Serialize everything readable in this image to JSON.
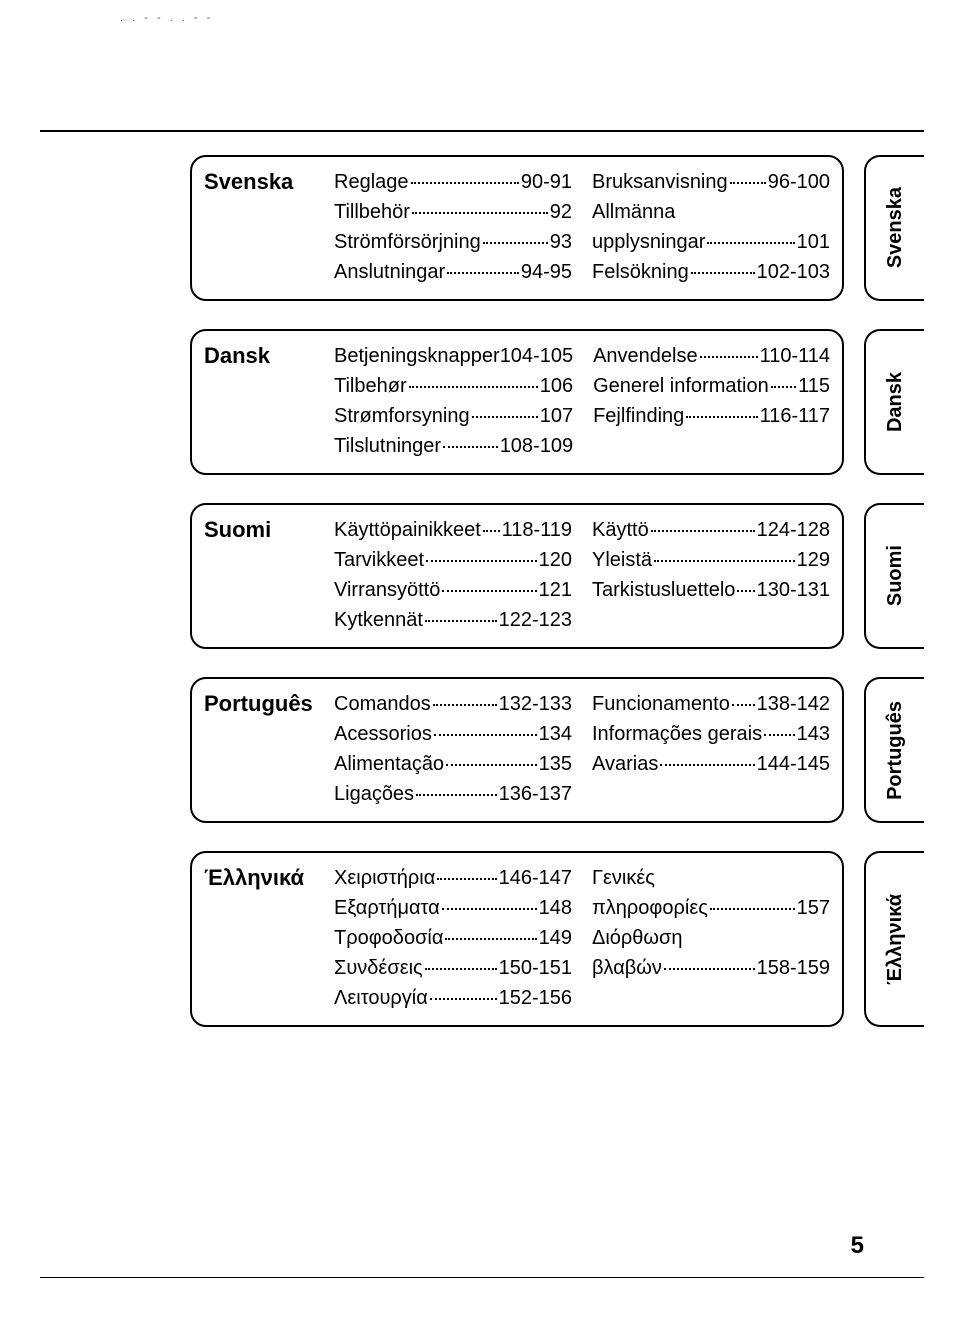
{
  "page_number": "5",
  "artifact_top": ". .  - -   .   . - -",
  "sections": [
    {
      "language": "Svenska",
      "tab": "Svenska",
      "col1": [
        {
          "label": "Reglage",
          "pages": "90-91"
        },
        {
          "label": "Tillbehör",
          "pages": "92"
        },
        {
          "label": "Strömförsörjning",
          "pages": "93"
        },
        {
          "label": "Anslutningar",
          "pages": "94-95"
        }
      ],
      "col2": [
        {
          "label": "Bruksanvisning",
          "pages": "96-100"
        },
        {
          "label": "Allmänna",
          "cont_label": "upplysningar",
          "pages": "101"
        },
        {
          "label": "Felsökning",
          "pages": "102-103"
        }
      ]
    },
    {
      "language": "Dansk",
      "tab": "Dansk",
      "col1": [
        {
          "label": "Betjeningsknapper",
          "pages": "104-105",
          "nodots": true
        },
        {
          "label": "Tilbehør",
          "pages": "106"
        },
        {
          "label": "Strømforsyning",
          "pages": "107"
        },
        {
          "label": "Tilslutninger",
          "pages": "108-109"
        }
      ],
      "col2": [
        {
          "label": "Anvendelse",
          "pages": "110-114"
        },
        {
          "label": "Generel information",
          "pages": "115"
        },
        {
          "label": "Fejlfinding",
          "pages": "116-117"
        }
      ]
    },
    {
      "language": "Suomi",
      "tab": "Suomi",
      "col1": [
        {
          "label": "Käyttöpainikkeet",
          "pages": "118-119"
        },
        {
          "label": "Tarvikkeet",
          "pages": "120"
        },
        {
          "label": "Virransyöttö",
          "pages": "121"
        },
        {
          "label": "Kytkennät",
          "pages": "122-123"
        }
      ],
      "col2": [
        {
          "label": "Käyttö",
          "pages": "124-128"
        },
        {
          "label": "Yleistä",
          "pages": "129"
        },
        {
          "label": "Tarkistusluettelo",
          "pages": "130-131"
        }
      ]
    },
    {
      "language": "Português",
      "tab": "Português",
      "col1": [
        {
          "label": "Comandos",
          "pages": "132-133"
        },
        {
          "label": "Acessorios",
          "pages": "134"
        },
        {
          "label": "Alimentação",
          "pages": "135"
        },
        {
          "label": "Ligações",
          "pages": "136-137"
        }
      ],
      "col2": [
        {
          "label": "Funcionamento",
          "pages": "138-142"
        },
        {
          "label": "Informações gerais",
          "pages": "143"
        },
        {
          "label": "Avarias",
          "pages": "144-145"
        }
      ]
    },
    {
      "language": "Έλληνικά",
      "tab": "Έλληνικά",
      "col1": [
        {
          "label": "Χειριστήρια",
          "pages": "146-147"
        },
        {
          "label": "Εξαρτήματα",
          "pages": "148"
        },
        {
          "label": "Τροφοδοσία",
          "pages": "149"
        },
        {
          "label": "Συνδέσεις",
          "pages": "150-151"
        },
        {
          "label": "Λειτουργία",
          "pages": "152-156"
        }
      ],
      "col2": [
        {
          "label": "Γενικές",
          "cont_label": "πληροφορίες",
          "pages": "157"
        },
        {
          "label": "Διόρθωση",
          "cont_label": "βλαβών",
          "pages": "158-159"
        }
      ]
    }
  ]
}
